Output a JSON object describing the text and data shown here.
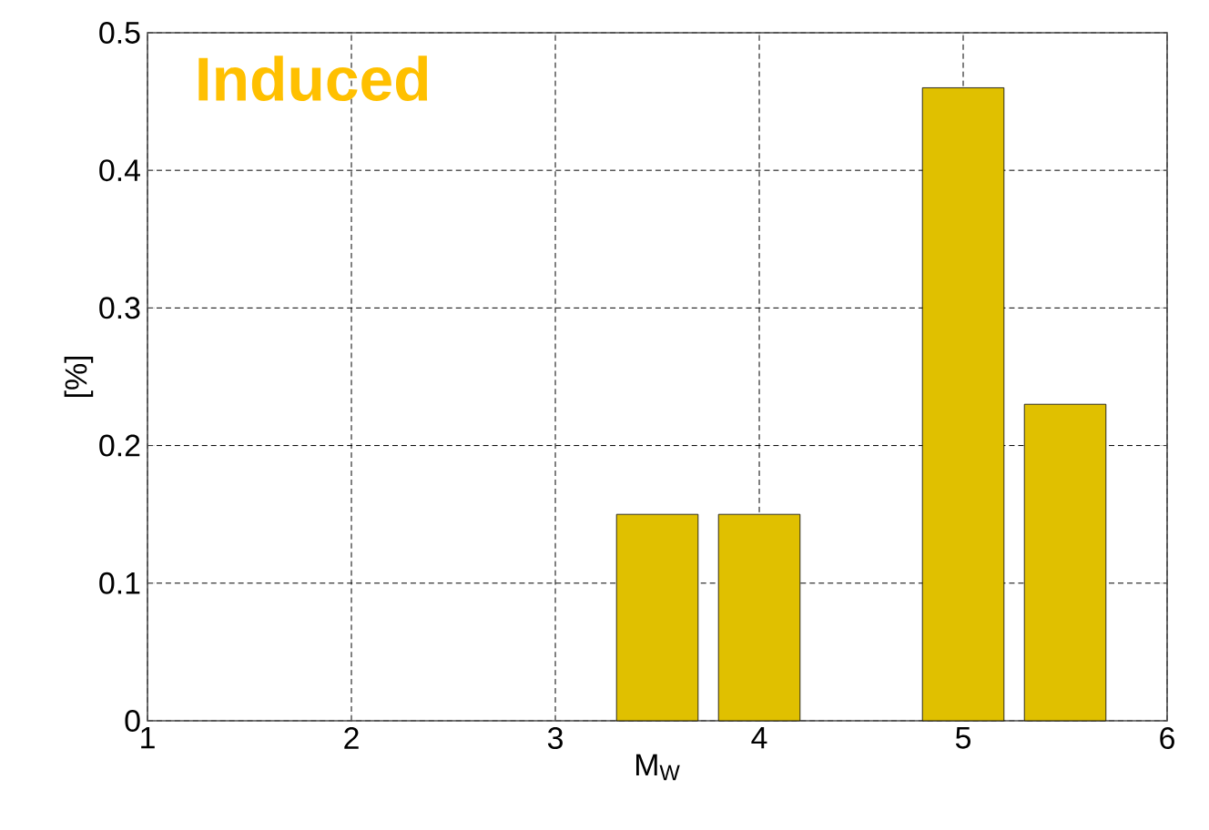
{
  "chart_data": {
    "type": "bar",
    "title": "Induced",
    "xlabel": "M$_{W}$",
    "ylabel": "[%]",
    "x": [
      3.5,
      4,
      5,
      5.5
    ],
    "values": [
      0.15,
      0.15,
      0.46,
      0.23
    ],
    "color": "#e0c000",
    "xlim": [
      1,
      6
    ],
    "xticks": [
      1,
      2,
      3,
      4,
      5,
      6
    ],
    "ylim": [
      0,
      0.5
    ],
    "yticks": [
      0,
      0.1,
      0.2,
      0.3,
      0.4,
      0.5
    ],
    "grid": true
  }
}
